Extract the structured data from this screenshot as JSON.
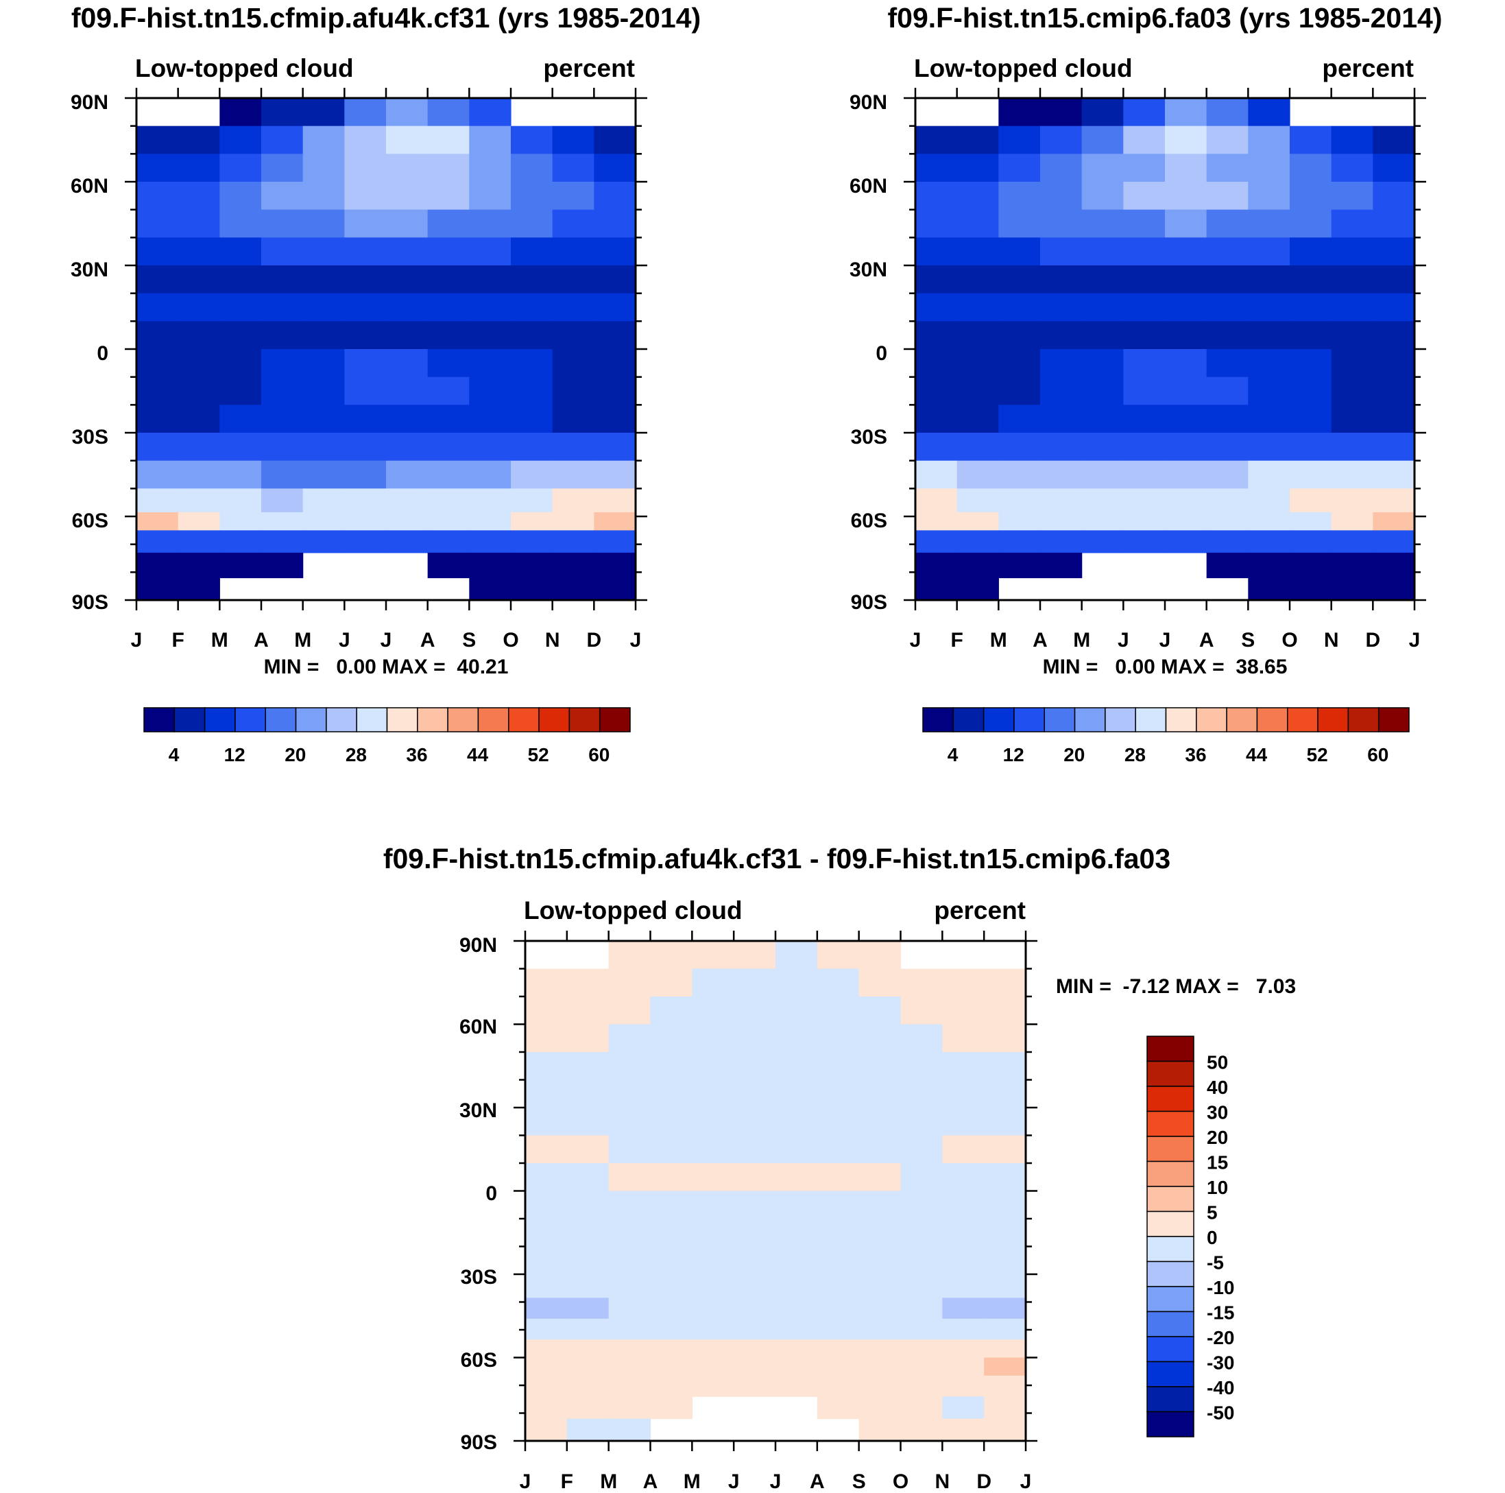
{
  "chart_data": [
    {
      "type": "heatmap",
      "title": "f09.F-hist.tn15.cfmip.afu4k.cf31 (yrs 1985-2014)",
      "subtitle_left": "Low-topped cloud",
      "subtitle_right": "percent",
      "x_ticks": [
        "J",
        "F",
        "M",
        "A",
        "M",
        "J",
        "J",
        "A",
        "S",
        "O",
        "N",
        "D",
        "J"
      ],
      "y_ticks": [
        "90N",
        "60N",
        "30N",
        "0",
        "30S",
        "60S",
        "90S"
      ],
      "xlim": [
        0,
        12
      ],
      "ylim": [
        -90,
        90
      ],
      "stats_text": "MIN =   0.00 MAX =  40.21",
      "colorbar_labels": [
        "4",
        "12",
        "20",
        "28",
        "36",
        "44",
        "52",
        "60"
      ],
      "rows": [
        {
          "lat": 85,
          "values": [
            null,
            null,
            2,
            4,
            7,
            16,
            22,
            18,
            12,
            null,
            null,
            null
          ]
        },
        {
          "lat": 75,
          "values": [
            5,
            6,
            8,
            14,
            20,
            26,
            29,
            28,
            22,
            14,
            10,
            7
          ]
        },
        {
          "lat": 65,
          "values": [
            10,
            11,
            12,
            16,
            21,
            24,
            25,
            24,
            20,
            16,
            13,
            11
          ]
        },
        {
          "lat": 55,
          "values": [
            14,
            15,
            17,
            20,
            23,
            25,
            26,
            25,
            23,
            19,
            16,
            15
          ]
        },
        {
          "lat": 45,
          "values": [
            15,
            15,
            16,
            17,
            19,
            20,
            20,
            19,
            18,
            16,
            15,
            15
          ]
        },
        {
          "lat": 35,
          "values": [
            11,
            11,
            11,
            12,
            12,
            13,
            13,
            13,
            12,
            11,
            11,
            11
          ]
        },
        {
          "lat": 25,
          "values": [
            7,
            6,
            6,
            7,
            7,
            4,
            4,
            5,
            6,
            7,
            7,
            7
          ]
        },
        {
          "lat": 15,
          "values": [
            10,
            10,
            11,
            11,
            11,
            10,
            10,
            10,
            10,
            10,
            10,
            10
          ]
        },
        {
          "lat": 5,
          "values": [
            6,
            5,
            5,
            6,
            7,
            7,
            7,
            7,
            7,
            6,
            6,
            6
          ]
        },
        {
          "lat": -5,
          "values": [
            5,
            5,
            6,
            8,
            10,
            12,
            12,
            11,
            10,
            8,
            6,
            5
          ]
        },
        {
          "lat": -15,
          "values": [
            6,
            6,
            7,
            9,
            11,
            13,
            13,
            12,
            11,
            9,
            7,
            6
          ]
        },
        {
          "lat": -25,
          "values": [
            7,
            7,
            8,
            9,
            10,
            10,
            10,
            10,
            9,
            8,
            6,
            6
          ]
        },
        {
          "lat": -35,
          "values": [
            12,
            12,
            12,
            12,
            12,
            12,
            12,
            12,
            12,
            12,
            12,
            12
          ]
        },
        {
          "lat": -45,
          "values": [
            23,
            22,
            21,
            19,
            18,
            18,
            20,
            21,
            23,
            24,
            24,
            24
          ]
        },
        {
          "lat": -55,
          "values": [
            30,
            29,
            28,
            27,
            28,
            29,
            30,
            30,
            30,
            31,
            32,
            33
          ]
        },
        {
          "lat": -62,
          "values": [
            36,
            34,
            31,
            30,
            30,
            31,
            31,
            31,
            31,
            32,
            34,
            37
          ]
        },
        {
          "lat": -68,
          "values": [
            14,
            14,
            14,
            13,
            13,
            13,
            13,
            13,
            13,
            13,
            14,
            14
          ]
        },
        {
          "lat": -78,
          "values": [
            1,
            1,
            1,
            0,
            null,
            null,
            null,
            1,
            1,
            1,
            1,
            1
          ]
        },
        {
          "lat": -86,
          "values": [
            1,
            1,
            null,
            null,
            null,
            null,
            null,
            null,
            1,
            1,
            1,
            1
          ]
        }
      ]
    },
    {
      "type": "heatmap",
      "title": "f09.F-hist.tn15.cmip6.fa03 (yrs 1985-2014)",
      "subtitle_left": "Low-topped cloud",
      "subtitle_right": "percent",
      "x_ticks": [
        "J",
        "F",
        "M",
        "A",
        "M",
        "J",
        "J",
        "A",
        "S",
        "O",
        "N",
        "D",
        "J"
      ],
      "y_ticks": [
        "90N",
        "60N",
        "30N",
        "0",
        "30S",
        "60S",
        "90S"
      ],
      "xlim": [
        0,
        12
      ],
      "ylim": [
        -90,
        90
      ],
      "stats_text": "MIN =   0.00 MAX =  38.65",
      "colorbar_labels": [
        "4",
        "12",
        "20",
        "28",
        "36",
        "44",
        "52",
        "60"
      ],
      "rows": [
        {
          "lat": 85,
          "values": [
            null,
            null,
            1,
            3,
            6,
            14,
            20,
            16,
            10,
            null,
            null,
            null
          ]
        },
        {
          "lat": 75,
          "values": [
            5,
            6,
            8,
            13,
            19,
            25,
            28,
            27,
            21,
            14,
            10,
            7
          ]
        },
        {
          "lat": 65,
          "values": [
            10,
            11,
            12,
            16,
            20,
            23,
            24,
            23,
            20,
            16,
            13,
            11
          ]
        },
        {
          "lat": 55,
          "values": [
            14,
            15,
            16,
            19,
            22,
            24,
            25,
            24,
            22,
            19,
            16,
            15
          ]
        },
        {
          "lat": 45,
          "values": [
            15,
            15,
            16,
            17,
            19,
            19,
            20,
            19,
            18,
            16,
            15,
            15
          ]
        },
        {
          "lat": 35,
          "values": [
            11,
            11,
            11,
            12,
            12,
            13,
            13,
            13,
            12,
            11,
            11,
            11
          ]
        },
        {
          "lat": 25,
          "values": [
            7,
            6,
            6,
            7,
            7,
            5,
            4,
            5,
            6,
            7,
            7,
            7
          ]
        },
        {
          "lat": 15,
          "values": [
            10,
            10,
            10,
            11,
            11,
            10,
            10,
            10,
            10,
            10,
            10,
            10
          ]
        },
        {
          "lat": 5,
          "values": [
            6,
            5,
            5,
            6,
            7,
            7,
            7,
            7,
            7,
            6,
            6,
            6
          ]
        },
        {
          "lat": -5,
          "values": [
            5,
            5,
            6,
            8,
            10,
            12,
            12,
            11,
            10,
            8,
            6,
            5
          ]
        },
        {
          "lat": -15,
          "values": [
            6,
            6,
            7,
            9,
            11,
            13,
            13,
            12,
            11,
            9,
            7,
            6
          ]
        },
        {
          "lat": -25,
          "values": [
            7,
            7,
            8,
            9,
            10,
            10,
            10,
            10,
            9,
            8,
            6,
            6
          ]
        },
        {
          "lat": -35,
          "values": [
            13,
            13,
            13,
            13,
            13,
            13,
            13,
            13,
            13,
            13,
            13,
            13
          ]
        },
        {
          "lat": -45,
          "values": [
            28,
            27,
            26,
            25,
            25,
            26,
            27,
            27,
            28,
            29,
            30,
            31
          ]
        },
        {
          "lat": -55,
          "values": [
            33,
            31,
            29,
            28,
            28,
            29,
            29,
            29,
            30,
            32,
            34,
            35
          ]
        },
        {
          "lat": -62,
          "values": [
            35,
            33,
            30,
            29,
            29,
            29,
            29,
            29,
            30,
            31,
            34,
            36
          ]
        },
        {
          "lat": -68,
          "values": [
            14,
            14,
            14,
            13,
            13,
            13,
            13,
            13,
            13,
            13,
            14,
            14
          ]
        },
        {
          "lat": -78,
          "values": [
            1,
            1,
            1,
            0,
            null,
            null,
            null,
            1,
            1,
            1,
            1,
            1
          ]
        },
        {
          "lat": -86,
          "values": [
            1,
            1,
            null,
            null,
            null,
            null,
            null,
            null,
            1,
            1,
            1,
            1
          ]
        }
      ]
    },
    {
      "type": "heatmap",
      "title": "f09.F-hist.tn15.cfmip.afu4k.cf31 - f09.F-hist.tn15.cmip6.fa03",
      "subtitle_left": "Low-topped cloud",
      "subtitle_right": "percent",
      "x_ticks": [
        "J",
        "F",
        "M",
        "A",
        "M",
        "J",
        "J",
        "A",
        "S",
        "O",
        "N",
        "D",
        "J"
      ],
      "y_ticks": [
        "90N",
        "60N",
        "30N",
        "0",
        "30S",
        "60S",
        "90S"
      ],
      "xlim": [
        0,
        12
      ],
      "ylim": [
        -90,
        90
      ],
      "stats_text": "MIN =  -7.12 MAX =   7.03",
      "colorbar_labels": [
        "50",
        "40",
        "30",
        "20",
        "15",
        "10",
        "5",
        "0",
        "-5",
        "-10",
        "-15",
        "-20",
        "-30",
        "-40",
        "-50"
      ],
      "rows": [
        {
          "lat": 85,
          "values": [
            null,
            null,
            2,
            1,
            1,
            2,
            -1,
            3,
            1,
            null,
            null,
            null
          ]
        },
        {
          "lat": 75,
          "values": [
            2,
            2,
            2,
            1,
            -1,
            -1,
            -1,
            -1,
            1,
            2,
            2,
            2
          ]
        },
        {
          "lat": 65,
          "values": [
            2,
            2,
            1,
            -1,
            -1,
            -2,
            -2,
            -1,
            -1,
            1,
            2,
            2
          ]
        },
        {
          "lat": 55,
          "values": [
            2,
            1,
            -1,
            -1,
            -2,
            -2,
            -2,
            -2,
            -1,
            -1,
            1,
            2
          ]
        },
        {
          "lat": 45,
          "values": [
            -1,
            -1,
            -1,
            -2,
            -2,
            -2,
            -2,
            -2,
            -2,
            -1,
            -1,
            -1
          ]
        },
        {
          "lat": 35,
          "values": [
            -1,
            -1,
            -1,
            -1,
            -2,
            -2,
            -2,
            -1,
            -1,
            -1,
            -1,
            -1
          ]
        },
        {
          "lat": 25,
          "values": [
            -1,
            -1,
            -1,
            -1,
            -1,
            -1,
            -1,
            -1,
            -1,
            -1,
            -1,
            -1
          ]
        },
        {
          "lat": 15,
          "values": [
            1,
            1,
            -1,
            -1,
            -1,
            -1,
            -1,
            -1,
            -1,
            -1,
            1,
            1
          ]
        },
        {
          "lat": 5,
          "values": [
            -1,
            -1,
            1,
            1,
            1,
            1,
            1,
            1,
            1,
            -1,
            -1,
            -1
          ]
        },
        {
          "lat": -5,
          "values": [
            -1,
            -1,
            -1,
            -1,
            -1,
            -1,
            -1,
            -1,
            -1,
            -1,
            -1,
            -1
          ]
        },
        {
          "lat": -15,
          "values": [
            -1,
            -1,
            -1,
            -1,
            -1,
            -1,
            -1,
            -1,
            -1,
            -1,
            -1,
            -1
          ]
        },
        {
          "lat": -25,
          "values": [
            -1,
            -1,
            -1,
            -1,
            -1,
            -1,
            -1,
            -1,
            -1,
            -1,
            -1,
            -1
          ]
        },
        {
          "lat": -35,
          "values": [
            -2,
            -2,
            -2,
            -1,
            -1,
            -1,
            -1,
            -1,
            -1,
            -2,
            -2,
            -2
          ]
        },
        {
          "lat": -42,
          "values": [
            -6,
            -6,
            -5,
            -3,
            -2,
            -1,
            -1,
            -2,
            -3,
            -5,
            -6,
            -6
          ]
        },
        {
          "lat": -50,
          "values": [
            -2,
            -2,
            -1,
            -1,
            -1,
            -1,
            -1,
            -1,
            -1,
            -1,
            -2,
            -2
          ]
        },
        {
          "lat": -57,
          "values": [
            1,
            1,
            1,
            1,
            1,
            1,
            1,
            1,
            1,
            1,
            1,
            2
          ]
        },
        {
          "lat": -63,
          "values": [
            1,
            1,
            1,
            1,
            1,
            1,
            1,
            1,
            1,
            1,
            3,
            5
          ]
        },
        {
          "lat": -70,
          "values": [
            1,
            1,
            1,
            1,
            1,
            1,
            1,
            1,
            1,
            1,
            1,
            1
          ]
        },
        {
          "lat": -78,
          "values": [
            1,
            1,
            1,
            1,
            null,
            null,
            null,
            1,
            1,
            1,
            -1,
            1
          ]
        },
        {
          "lat": -86,
          "values": [
            1,
            -1,
            -1,
            null,
            null,
            null,
            null,
            null,
            1,
            1,
            1,
            1
          ]
        }
      ]
    }
  ],
  "colors": {
    "seq": [
      "#000080",
      "#0020a8",
      "#0034d8",
      "#2050f0",
      "#4a78f0",
      "#7aa0f8",
      "#aec4fb",
      "#d4e6fd",
      "#fde4d4",
      "#fcc3a6",
      "#f9a07c",
      "#f57a50",
      "#f04e21",
      "#dc2a06",
      "#b51e05",
      "#840000"
    ],
    "div": [
      "#000080",
      "#0020a8",
      "#0034d8",
      "#2050f0",
      "#4a78f0",
      "#7aa0f8",
      "#aec4fb",
      "#d4e6fd",
      "#fde4d4",
      "#fcc3a6",
      "#f9a07c",
      "#f57a50",
      "#f04e21",
      "#dc2a06",
      "#b51e05",
      "#840000"
    ]
  }
}
